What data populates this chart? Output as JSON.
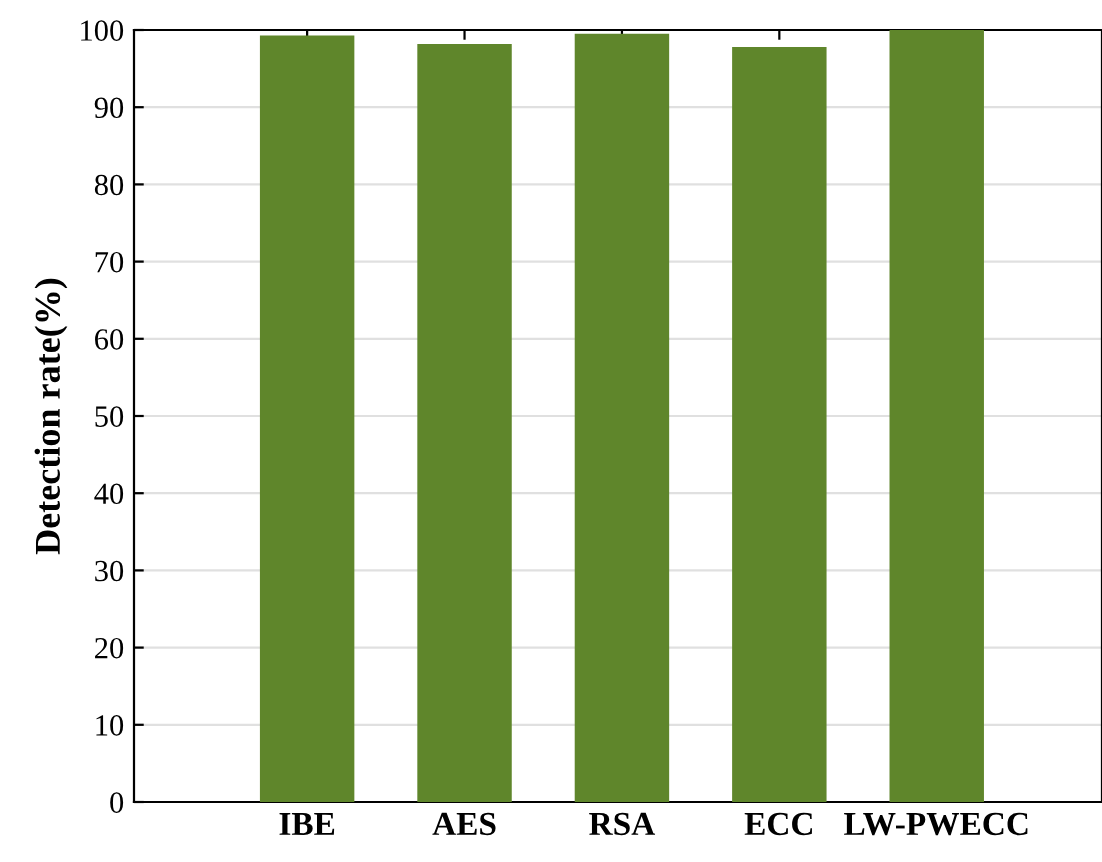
{
  "chart_data": {
    "type": "bar",
    "ylabel": "Detection rate(%)",
    "categories": [
      "IBE",
      "AES",
      "RSA",
      "ECC",
      "LW-PWECC"
    ],
    "values": [
      99.3,
      98.2,
      99.5,
      97.8,
      100
    ],
    "color": "#5f862b",
    "ylim": [
      0,
      100
    ],
    "yticks": [
      0,
      10,
      20,
      30,
      40,
      50,
      60,
      70,
      80,
      90,
      100
    ],
    "grid": "y"
  }
}
